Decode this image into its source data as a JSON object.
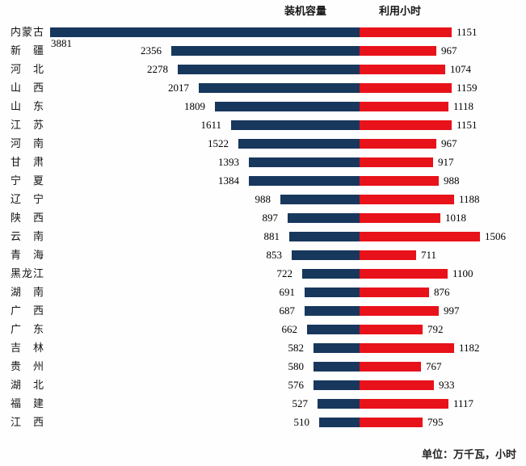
{
  "header": {
    "capacity_label": "装机容量",
    "hours_label": "利用小时"
  },
  "footer": {
    "unit_note": "单位：万千瓦，小时"
  },
  "colors": {
    "capacity_bar": "#17375D",
    "hours_bar": "#E8121A"
  },
  "chart_data": {
    "type": "bar",
    "variant": "diverging-tornado",
    "orientation": "horizontal",
    "title": "",
    "legend_position": "top",
    "value_labels": true,
    "grid": false,
    "unit_note": "单位：万千瓦，小时",
    "categories": [
      "内蒙古",
      "新疆",
      "河北",
      "山西",
      "山东",
      "江苏",
      "河南",
      "甘肃",
      "宁夏",
      "辽宁",
      "陕西",
      "云南",
      "青海",
      "黑龙江",
      "湖南",
      "广西",
      "广东",
      "吉林",
      "贵州",
      "湖北",
      "福建",
      "江西"
    ],
    "series": [
      {
        "name": "装机容量",
        "direction": "left",
        "color": "#17375D",
        "values": [
          3881,
          2356,
          2278,
          2017,
          1809,
          1611,
          1522,
          1393,
          1384,
          988,
          897,
          881,
          853,
          722,
          691,
          687,
          662,
          582,
          580,
          576,
          527,
          510
        ]
      },
      {
        "name": "利用小时",
        "direction": "right",
        "color": "#E8121A",
        "values": [
          1151,
          967,
          1074,
          1159,
          1118,
          1151,
          967,
          917,
          988,
          1188,
          1018,
          1506,
          711,
          1100,
          876,
          997,
          792,
          1182,
          767,
          933,
          1117,
          795
        ]
      }
    ]
  }
}
